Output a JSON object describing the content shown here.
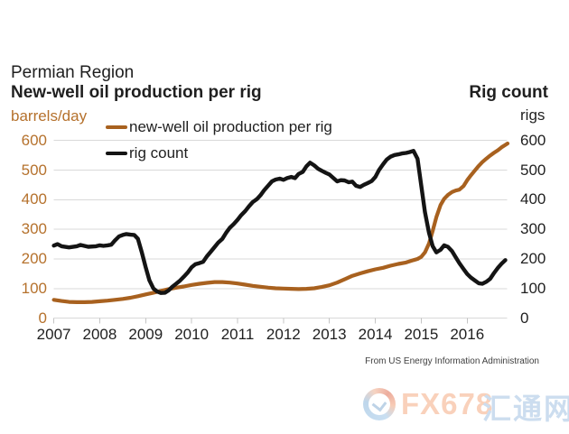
{
  "title": {
    "line1": "Permian Region",
    "line2": "New-well oil production per rig"
  },
  "right_title": "Rig count",
  "left_axis": {
    "unit": "barrels/day",
    "ticks": [
      600,
      500,
      400,
      300,
      200,
      100,
      0
    ]
  },
  "right_axis": {
    "unit": "rigs",
    "ticks": [
      600,
      500,
      400,
      300,
      200,
      100,
      0
    ]
  },
  "x_axis": {
    "years": [
      "2007",
      "2008",
      "2009",
      "2010",
      "2011",
      "2012",
      "2013",
      "2014",
      "2015",
      "2016"
    ]
  },
  "legend": [
    {
      "label": "new-well oil production per rig",
      "color": "#a8611f"
    },
    {
      "label": "rig count",
      "color": "#141414"
    }
  ],
  "source": "From US Energy Information Administration",
  "watermark": {
    "fx_text": "FX678",
    "cn_text": "汇通网"
  },
  "colors": {
    "production_line": "#a8611f",
    "rig_line": "#141414",
    "axis_text_left": "#b5712c",
    "axis_text_right": "#1f1f1f",
    "gridline": "#d9d9d9",
    "tick_mark": "#c4c4c4",
    "watermark_orange": "#f5ad85",
    "watermark_blue": "#a3c3e2"
  },
  "chart_data": {
    "type": "line",
    "title": "Permian Region — New-well oil production per rig",
    "xlabel": "year",
    "x_range": [
      2007,
      2016.9
    ],
    "grid": true,
    "legend_position": "top-left-inside",
    "y_left": {
      "label": "barrels/day",
      "range": [
        0,
        600
      ],
      "tick_step": 100
    },
    "y_right": {
      "label": "rigs",
      "range": [
        0,
        600
      ],
      "tick_step": 100
    },
    "series": [
      {
        "name": "new-well oil production per rig",
        "axis": "left",
        "color": "#a8611f",
        "points": [
          [
            2007.0,
            62
          ],
          [
            2007.17,
            58
          ],
          [
            2007.33,
            55
          ],
          [
            2007.5,
            54
          ],
          [
            2007.67,
            54
          ],
          [
            2007.83,
            55
          ],
          [
            2008.0,
            57
          ],
          [
            2008.17,
            59
          ],
          [
            2008.33,
            62
          ],
          [
            2008.5,
            65
          ],
          [
            2008.67,
            69
          ],
          [
            2008.83,
            74
          ],
          [
            2009.0,
            80
          ],
          [
            2009.17,
            86
          ],
          [
            2009.33,
            92
          ],
          [
            2009.5,
            98
          ],
          [
            2009.67,
            103
          ],
          [
            2009.83,
            107
          ],
          [
            2010.0,
            112
          ],
          [
            2010.17,
            116
          ],
          [
            2010.33,
            119
          ],
          [
            2010.5,
            122
          ],
          [
            2010.67,
            122
          ],
          [
            2010.83,
            120
          ],
          [
            2011.0,
            117
          ],
          [
            2011.17,
            113
          ],
          [
            2011.33,
            109
          ],
          [
            2011.5,
            106
          ],
          [
            2011.67,
            103
          ],
          [
            2011.83,
            101
          ],
          [
            2012.0,
            100
          ],
          [
            2012.17,
            99
          ],
          [
            2012.33,
            98
          ],
          [
            2012.5,
            99
          ],
          [
            2012.67,
            101
          ],
          [
            2012.83,
            105
          ],
          [
            2013.0,
            111
          ],
          [
            2013.17,
            120
          ],
          [
            2013.33,
            131
          ],
          [
            2013.5,
            143
          ],
          [
            2013.67,
            151
          ],
          [
            2013.83,
            158
          ],
          [
            2014.0,
            165
          ],
          [
            2014.17,
            170
          ],
          [
            2014.33,
            177
          ],
          [
            2014.5,
            183
          ],
          [
            2014.67,
            188
          ],
          [
            2014.83,
            196
          ],
          [
            2014.92,
            200
          ],
          [
            2015.0,
            207
          ],
          [
            2015.08,
            222
          ],
          [
            2015.17,
            252
          ],
          [
            2015.25,
            295
          ],
          [
            2015.33,
            342
          ],
          [
            2015.42,
            382
          ],
          [
            2015.5,
            403
          ],
          [
            2015.58,
            416
          ],
          [
            2015.67,
            426
          ],
          [
            2015.75,
            431
          ],
          [
            2015.83,
            434
          ],
          [
            2015.92,
            446
          ],
          [
            2016.0,
            466
          ],
          [
            2016.08,
            482
          ],
          [
            2016.17,
            499
          ],
          [
            2016.25,
            514
          ],
          [
            2016.33,
            527
          ],
          [
            2016.42,
            539
          ],
          [
            2016.5,
            549
          ],
          [
            2016.58,
            558
          ],
          [
            2016.67,
            567
          ],
          [
            2016.75,
            577
          ],
          [
            2016.83,
            585
          ],
          [
            2016.88,
            590
          ]
        ]
      },
      {
        "name": "rig count",
        "axis": "right",
        "color": "#141414",
        "points": [
          [
            2007.0,
            245
          ],
          [
            2007.08,
            250
          ],
          [
            2007.17,
            243
          ],
          [
            2007.33,
            239
          ],
          [
            2007.5,
            243
          ],
          [
            2007.58,
            247
          ],
          [
            2007.75,
            241
          ],
          [
            2007.92,
            243
          ],
          [
            2008.0,
            246
          ],
          [
            2008.08,
            244
          ],
          [
            2008.17,
            246
          ],
          [
            2008.25,
            248
          ],
          [
            2008.33,
            262
          ],
          [
            2008.42,
            276
          ],
          [
            2008.5,
            281
          ],
          [
            2008.58,
            284
          ],
          [
            2008.67,
            282
          ],
          [
            2008.75,
            281
          ],
          [
            2008.83,
            268
          ],
          [
            2008.92,
            220
          ],
          [
            2009.0,
            172
          ],
          [
            2009.08,
            128
          ],
          [
            2009.17,
            100
          ],
          [
            2009.25,
            90
          ],
          [
            2009.33,
            85
          ],
          [
            2009.42,
            86
          ],
          [
            2009.5,
            94
          ],
          [
            2009.58,
            106
          ],
          [
            2009.67,
            117
          ],
          [
            2009.75,
            127
          ],
          [
            2009.83,
            140
          ],
          [
            2009.92,
            155
          ],
          [
            2010.0,
            172
          ],
          [
            2010.08,
            182
          ],
          [
            2010.17,
            186
          ],
          [
            2010.25,
            190
          ],
          [
            2010.33,
            208
          ],
          [
            2010.42,
            225
          ],
          [
            2010.5,
            240
          ],
          [
            2010.58,
            255
          ],
          [
            2010.67,
            268
          ],
          [
            2010.75,
            288
          ],
          [
            2010.83,
            305
          ],
          [
            2010.92,
            318
          ],
          [
            2011.0,
            332
          ],
          [
            2011.08,
            348
          ],
          [
            2011.17,
            362
          ],
          [
            2011.25,
            378
          ],
          [
            2011.33,
            392
          ],
          [
            2011.42,
            402
          ],
          [
            2011.5,
            415
          ],
          [
            2011.58,
            432
          ],
          [
            2011.67,
            448
          ],
          [
            2011.75,
            462
          ],
          [
            2011.83,
            468
          ],
          [
            2011.92,
            471
          ],
          [
            2012.0,
            467
          ],
          [
            2012.08,
            473
          ],
          [
            2012.17,
            477
          ],
          [
            2012.25,
            473
          ],
          [
            2012.33,
            487
          ],
          [
            2012.42,
            494
          ],
          [
            2012.5,
            513
          ],
          [
            2012.58,
            525
          ],
          [
            2012.67,
            516
          ],
          [
            2012.75,
            505
          ],
          [
            2012.83,
            498
          ],
          [
            2012.92,
            491
          ],
          [
            2013.0,
            485
          ],
          [
            2013.08,
            474
          ],
          [
            2013.17,
            462
          ],
          [
            2013.25,
            466
          ],
          [
            2013.33,
            465
          ],
          [
            2013.42,
            459
          ],
          [
            2013.5,
            461
          ],
          [
            2013.58,
            447
          ],
          [
            2013.67,
            443
          ],
          [
            2013.75,
            450
          ],
          [
            2013.83,
            456
          ],
          [
            2013.92,
            463
          ],
          [
            2014.0,
            477
          ],
          [
            2014.08,
            500
          ],
          [
            2014.17,
            520
          ],
          [
            2014.25,
            536
          ],
          [
            2014.33,
            545
          ],
          [
            2014.42,
            551
          ],
          [
            2014.5,
            553
          ],
          [
            2014.58,
            556
          ],
          [
            2014.67,
            558
          ],
          [
            2014.75,
            561
          ],
          [
            2014.83,
            565
          ],
          [
            2014.92,
            538
          ],
          [
            2015.0,
            448
          ],
          [
            2015.08,
            358
          ],
          [
            2015.17,
            288
          ],
          [
            2015.25,
            243
          ],
          [
            2015.33,
            222
          ],
          [
            2015.42,
            231
          ],
          [
            2015.5,
            246
          ],
          [
            2015.58,
            241
          ],
          [
            2015.67,
            226
          ],
          [
            2015.75,
            206
          ],
          [
            2015.83,
            186
          ],
          [
            2015.92,
            166
          ],
          [
            2016.0,
            149
          ],
          [
            2016.08,
            137
          ],
          [
            2016.17,
            127
          ],
          [
            2016.25,
            118
          ],
          [
            2016.33,
            116
          ],
          [
            2016.42,
            123
          ],
          [
            2016.5,
            133
          ],
          [
            2016.58,
            151
          ],
          [
            2016.67,
            170
          ],
          [
            2016.75,
            184
          ],
          [
            2016.83,
            196
          ]
        ]
      }
    ]
  }
}
